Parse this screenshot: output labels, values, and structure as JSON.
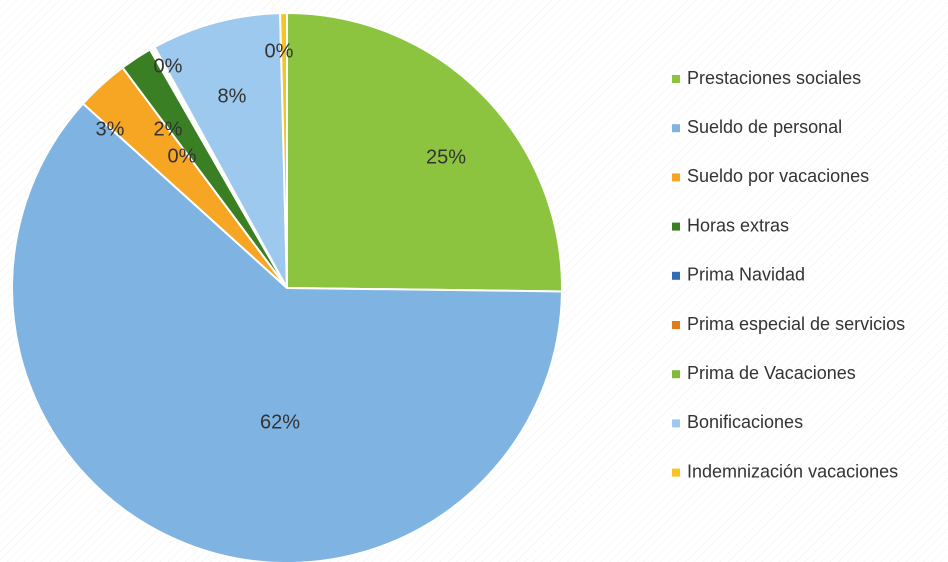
{
  "chart_data": {
    "type": "pie",
    "categories": [
      "Prestaciones sociales",
      "Sueldo de personal",
      "Sueldo por vacaciones",
      "Horas extras",
      "Prima Navidad",
      "Prima especial de servicios",
      "Prima de Vacaciones",
      "Bonificaciones",
      "Indemnización  vacaciones"
    ],
    "values": [
      25.2,
      61.5,
      3.1,
      1.9,
      0.1,
      0.1,
      0.1,
      7.6,
      0.4
    ],
    "value_labels": [
      "25%",
      "62%",
      "3%",
      "2%",
      "0%",
      null,
      "0%",
      "8%",
      "0%"
    ],
    "colors": [
      "#8cc43f",
      "#7fb3e2",
      "#f6a623",
      "#3b7f24",
      "#2f6eb5",
      "#e27a1e",
      "#7fba3a",
      "#9dc9ee",
      "#f7c325"
    ],
    "legend": "right"
  }
}
